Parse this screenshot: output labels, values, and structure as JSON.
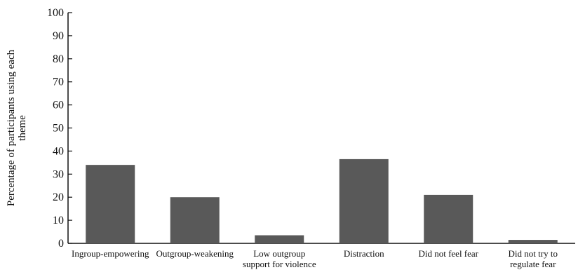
{
  "chart_data": {
    "type": "bar",
    "title": "",
    "xlabel": "",
    "ylabel": "Percentage of participants using each theme",
    "ylabel_lines": [
      "Percentage of participants using each",
      "theme"
    ],
    "categories": [
      "Ingroup-empowering",
      "Outgroup-weakening",
      "Low outgroup support for violence",
      "Distraction",
      "Did not feel fear",
      "Did not try to regulate fear"
    ],
    "category_lines": [
      [
        "Ingroup-empowering"
      ],
      [
        "Outgroup-weakening"
      ],
      [
        "Low outgroup",
        "support for violence"
      ],
      [
        "Distraction"
      ],
      [
        "Did not feel fear"
      ],
      [
        "Did not try to",
        "regulate fear"
      ]
    ],
    "values": [
      34,
      20,
      3.5,
      36.5,
      21,
      1.5
    ],
    "ylim": [
      0,
      100
    ],
    "yticks": [
      0,
      10,
      20,
      30,
      40,
      50,
      60,
      70,
      80,
      90,
      100
    ],
    "grid": false,
    "legend": "none",
    "colors": {
      "bar": "#595959",
      "axis": "#111111"
    }
  }
}
